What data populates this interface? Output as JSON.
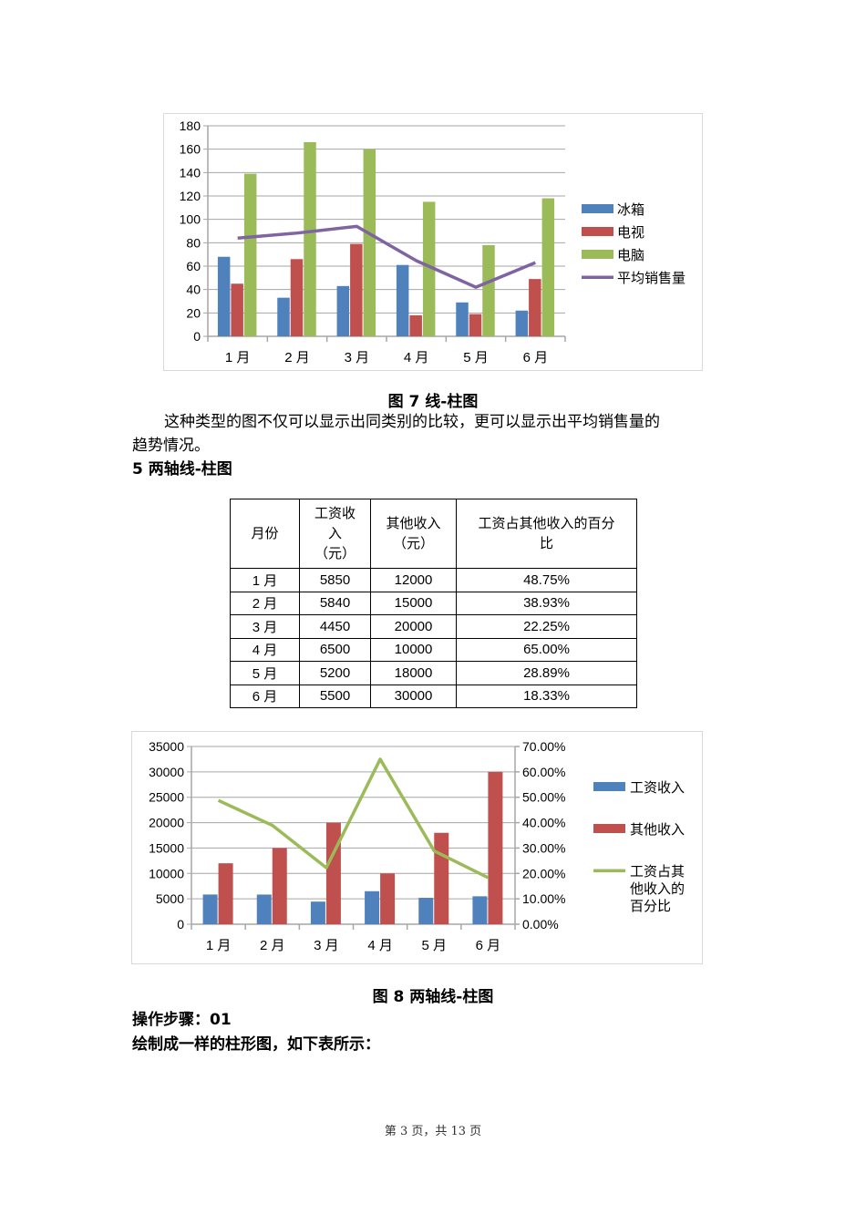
{
  "figure7": {
    "caption": "图 7 线-柱图",
    "legend": [
      "冰箱",
      "电视",
      "电脑",
      "平均销售量"
    ]
  },
  "paragraph1": {
    "line1": "这种类型的图不仅可以显示出同类别的比较，更可以显示出平均销售量的",
    "line2": "趋势情况。"
  },
  "section5": {
    "heading": "5 两轴线-柱图"
  },
  "table": {
    "headers": [
      "月份",
      "工资收入（元）",
      "其他收入（元）",
      "工资占其他收入的百分比"
    ],
    "header_lines": [
      [
        "月份"
      ],
      [
        "工资收",
        "入",
        "（元）"
      ],
      [
        "其他收入",
        "（元）"
      ],
      [
        "工资占其他收入的百分",
        "比"
      ]
    ],
    "rows": [
      [
        "1 月",
        "5850",
        "12000",
        "48.75%"
      ],
      [
        "2 月",
        "5840",
        "15000",
        "38.93%"
      ],
      [
        "3 月",
        "4450",
        "20000",
        "22.25%"
      ],
      [
        "4 月",
        "6500",
        "10000",
        "65.00%"
      ],
      [
        "5 月",
        "5200",
        "18000",
        "28.89%"
      ],
      [
        "6 月",
        "5500",
        "30000",
        "18.33%"
      ]
    ]
  },
  "figure8": {
    "caption": "图 8 两轴线-柱图",
    "legend": [
      "工资收入",
      "其他收入",
      "工资占其他收入的百分比"
    ],
    "legend_line3": [
      "工资占其",
      "他收入的",
      "百分比"
    ]
  },
  "steps": {
    "heading": "操作步骤：01",
    "text": "绘制成一样的柱形图，如下表所示："
  },
  "footer": {
    "text": "第 3 页，共 13 页"
  },
  "colors": {
    "blue": "#4F81BD",
    "red": "#C0504D",
    "green": "#9BBB59",
    "purple": "#8064A2",
    "grid": "#a6a6a6"
  },
  "chart_data": [
    {
      "type": "bar",
      "title": "图 7 线-柱图",
      "categories": [
        "1月",
        "2月",
        "3月",
        "4月",
        "5月",
        "6月"
      ],
      "series": [
        {
          "name": "冰箱",
          "type": "bar",
          "color": "#4F81BD",
          "values": [
            68,
            33,
            43,
            61,
            29,
            22
          ]
        },
        {
          "name": "电视",
          "type": "bar",
          "color": "#C0504D",
          "values": [
            45,
            66,
            79,
            18,
            19,
            49
          ]
        },
        {
          "name": "电脑",
          "type": "bar",
          "color": "#9BBB59",
          "values": [
            139,
            166,
            160,
            115,
            78,
            118
          ]
        },
        {
          "name": "平均销售量",
          "type": "line",
          "color": "#8064A2",
          "values": [
            84,
            88.3,
            94,
            64.7,
            42,
            63
          ]
        }
      ],
      "xlabel": "",
      "ylabel": "",
      "ylim": [
        0,
        180
      ],
      "yticks": [
        0,
        20,
        40,
        60,
        80,
        100,
        120,
        140,
        160,
        180
      ],
      "grid": true,
      "legend_position": "right"
    },
    {
      "type": "bar",
      "title": "图 8 两轴线-柱图",
      "categories": [
        "1月",
        "2月",
        "3月",
        "4月",
        "5月",
        "6月"
      ],
      "series": [
        {
          "name": "工资收入",
          "type": "bar",
          "axis": "left",
          "color": "#4F81BD",
          "values": [
            5850,
            5840,
            4450,
            6500,
            5200,
            5500
          ]
        },
        {
          "name": "其他收入",
          "type": "bar",
          "axis": "left",
          "color": "#C0504D",
          "values": [
            12000,
            15000,
            20000,
            10000,
            18000,
            30000
          ]
        },
        {
          "name": "工资占其他收入的百分比",
          "type": "line",
          "axis": "right",
          "color": "#9BBB59",
          "values": [
            48.75,
            38.93,
            22.25,
            65.0,
            28.89,
            18.33
          ]
        }
      ],
      "ylim": [
        0,
        35000
      ],
      "yticks": [
        0,
        5000,
        10000,
        15000,
        20000,
        25000,
        30000,
        35000
      ],
      "y2lim": [
        0,
        70
      ],
      "y2ticks": [
        "0.00%",
        "10.00%",
        "20.00%",
        "30.00%",
        "40.00%",
        "50.00%",
        "60.00%",
        "70.00%"
      ],
      "grid": true,
      "legend_position": "right"
    }
  ]
}
